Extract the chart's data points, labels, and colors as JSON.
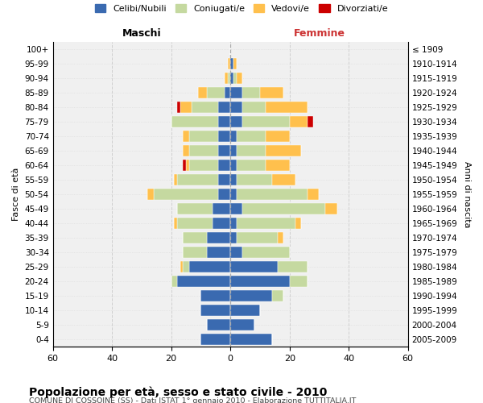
{
  "age_groups": [
    "0-4",
    "5-9",
    "10-14",
    "15-19",
    "20-24",
    "25-29",
    "30-34",
    "35-39",
    "40-44",
    "45-49",
    "50-54",
    "55-59",
    "60-64",
    "65-69",
    "70-74",
    "75-79",
    "80-84",
    "85-89",
    "90-94",
    "95-99",
    "100+"
  ],
  "birth_years": [
    "2005-2009",
    "2000-2004",
    "1995-1999",
    "1990-1994",
    "1985-1989",
    "1980-1984",
    "1975-1979",
    "1970-1974",
    "1965-1969",
    "1960-1964",
    "1955-1959",
    "1950-1954",
    "1945-1949",
    "1940-1944",
    "1935-1939",
    "1930-1934",
    "1925-1929",
    "1920-1924",
    "1915-1919",
    "1910-1914",
    "≤ 1909"
  ],
  "male_celibi": [
    10,
    8,
    10,
    10,
    18,
    14,
    8,
    8,
    6,
    6,
    4,
    4,
    4,
    4,
    4,
    4,
    4,
    2,
    0,
    0,
    0
  ],
  "male_coniugati": [
    0,
    0,
    0,
    0,
    2,
    2,
    8,
    8,
    12,
    12,
    22,
    14,
    10,
    10,
    10,
    16,
    9,
    6,
    1,
    0,
    0
  ],
  "male_vedovi": [
    0,
    0,
    0,
    0,
    0,
    1,
    0,
    0,
    1,
    0,
    2,
    1,
    1,
    2,
    2,
    0,
    4,
    3,
    1,
    1,
    0
  ],
  "male_divorziati": [
    0,
    0,
    0,
    0,
    0,
    0,
    0,
    0,
    0,
    0,
    0,
    0,
    1,
    0,
    0,
    0,
    1,
    0,
    0,
    0,
    0
  ],
  "female_celibi": [
    14,
    8,
    10,
    14,
    20,
    16,
    4,
    2,
    2,
    4,
    2,
    2,
    2,
    2,
    2,
    4,
    4,
    4,
    1,
    1,
    0
  ],
  "female_coniugati": [
    0,
    0,
    0,
    4,
    6,
    10,
    16,
    14,
    20,
    28,
    24,
    12,
    10,
    10,
    10,
    16,
    8,
    6,
    1,
    0,
    0
  ],
  "female_vedovi": [
    0,
    0,
    0,
    0,
    0,
    0,
    0,
    2,
    2,
    4,
    4,
    8,
    8,
    12,
    8,
    6,
    14,
    8,
    2,
    1,
    0
  ],
  "female_divorziati": [
    0,
    0,
    0,
    0,
    0,
    0,
    0,
    0,
    0,
    0,
    0,
    0,
    0,
    0,
    0,
    2,
    0,
    0,
    0,
    0,
    0
  ],
  "color_celibi": "#3a6ab0",
  "color_coniugati": "#c5d9a0",
  "color_vedovi": "#ffc04d",
  "color_divorziati": "#cc0000",
  "bg_color": "#f0f0f0",
  "grid_color": "#cccccc",
  "title": "Popolazione per età, sesso e stato civile - 2010",
  "subtitle": "COMUNE DI COSSOINE (SS) - Dati ISTAT 1° gennaio 2010 - Elaborazione TUTTITALIA.IT",
  "xlabel_left": "Maschi",
  "xlabel_right": "Femmine",
  "ylabel_left": "Fasce di età",
  "ylabel_right": "Anni di nascita",
  "xlim": 60
}
